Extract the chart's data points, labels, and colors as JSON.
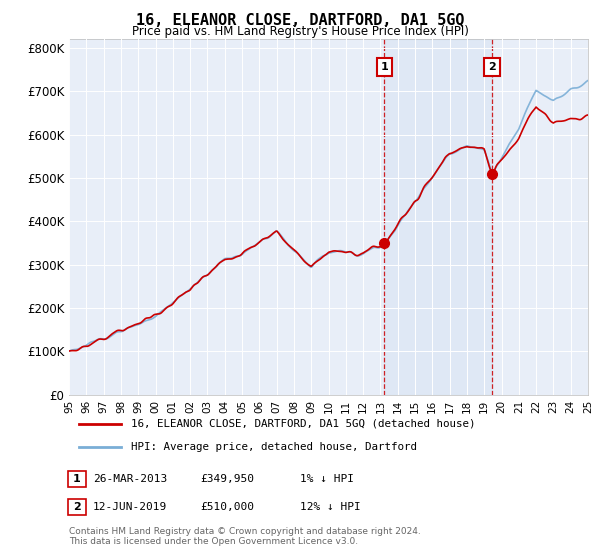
{
  "title": "16, ELEANOR CLOSE, DARTFORD, DA1 5GQ",
  "subtitle": "Price paid vs. HM Land Registry's House Price Index (HPI)",
  "ylabel_ticks": [
    "£0",
    "£100K",
    "£200K",
    "£300K",
    "£400K",
    "£500K",
    "£600K",
    "£700K",
    "£800K"
  ],
  "ytick_values": [
    0,
    100000,
    200000,
    300000,
    400000,
    500000,
    600000,
    700000,
    800000
  ],
  "ylim": [
    0,
    820000
  ],
  "hpi_color": "#7aaed6",
  "price_color": "#cc0000",
  "sale1_date": 2013.23,
  "sale1_price": 349950,
  "sale2_date": 2019.45,
  "sale2_price": 510000,
  "background_plot": "#e8eef8",
  "background_fig": "#ffffff",
  "legend_entry1": "16, ELEANOR CLOSE, DARTFORD, DA1 5GQ (detached house)",
  "legend_entry2": "HPI: Average price, detached house, Dartford",
  "annotation1_date": "26-MAR-2013",
  "annotation1_price": "£349,950",
  "annotation1_rel": "1% ↓ HPI",
  "annotation2_date": "12-JUN-2019",
  "annotation2_price": "£510,000",
  "annotation2_rel": "12% ↓ HPI",
  "footer": "Contains HM Land Registry data © Crown copyright and database right 2024.\nThis data is licensed under the Open Government Licence v3.0.",
  "xmin": 1995,
  "xmax": 2025
}
